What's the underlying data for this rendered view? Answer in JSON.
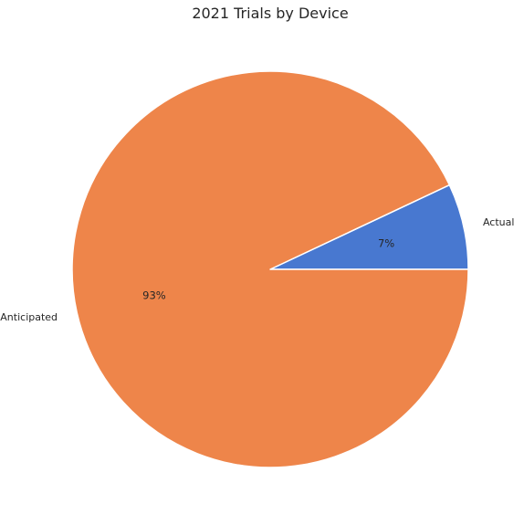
{
  "chart_data": {
    "type": "pie",
    "title": "2021 Trials by Device",
    "categories": [
      "Actual",
      "Anticipated"
    ],
    "values": [
      7,
      93
    ],
    "percent_labels": [
      "7%",
      "93%"
    ],
    "colors": [
      "#4878d0",
      "#ee854a"
    ],
    "start_angle_deg": 0,
    "direction": "counterclockwise",
    "slice_edge_color": "#ffffff",
    "legend": "none"
  }
}
